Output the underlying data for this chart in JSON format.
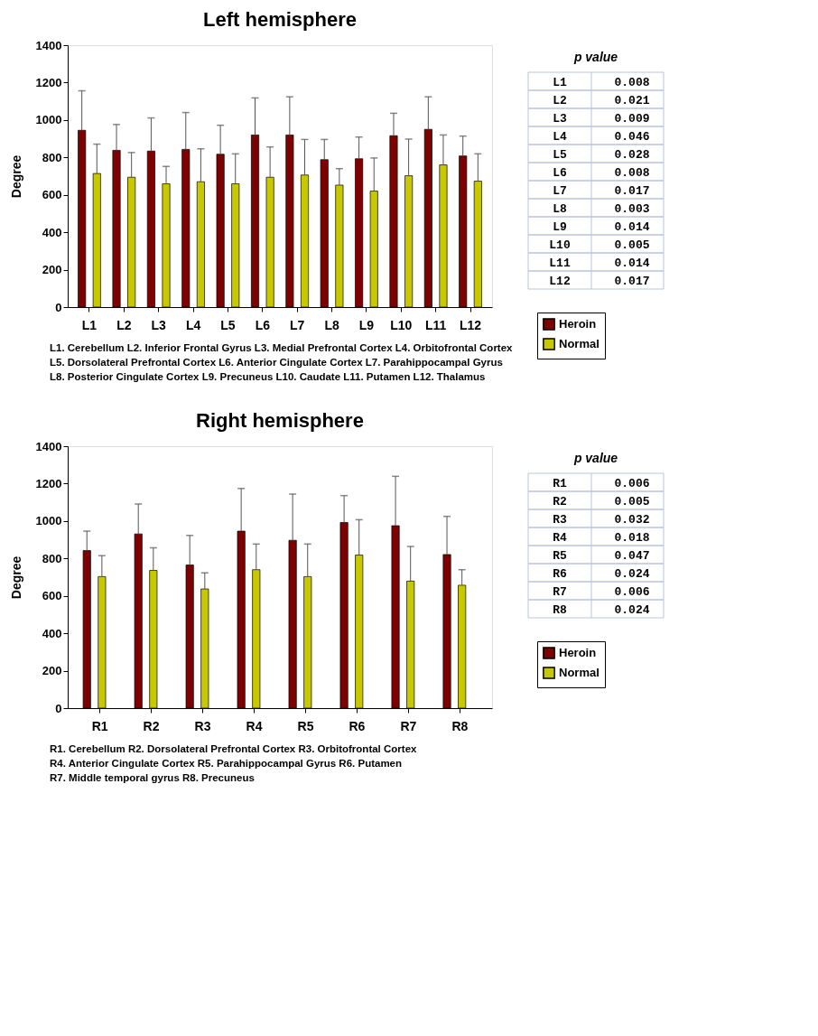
{
  "chart_data": [
    {
      "type": "bar",
      "title": "Left hemisphere",
      "ylabel": "Degree",
      "categories": [
        "L1",
        "L2",
        "L3",
        "L4",
        "L5",
        "L6",
        "L7",
        "L8",
        "L9",
        "L10",
        "L11",
        "L12"
      ],
      "ylim": [
        0,
        1400
      ],
      "yticks": [
        0,
        200,
        400,
        600,
        800,
        1000,
        1200,
        1400
      ],
      "legend": "right",
      "series": [
        {
          "name": "Heroin",
          "color": "#7f0000",
          "values": [
            945,
            838,
            834,
            843,
            817,
            920,
            920,
            788,
            793,
            916,
            950,
            808
          ],
          "errors": [
            [
              945,
              1156
            ],
            [
              838,
              976
            ],
            [
              834,
              1011
            ],
            [
              843,
              1040
            ],
            [
              817,
              972
            ],
            [
              920,
              1118
            ],
            [
              920,
              1124
            ],
            [
              788,
              896
            ],
            [
              793,
              909
            ],
            [
              916,
              1036
            ],
            [
              950,
              1124
            ],
            [
              808,
              914
            ]
          ]
        },
        {
          "name": "Normal",
          "color": "#c8c800",
          "values": [
            714,
            694,
            659,
            670,
            659,
            694,
            706,
            652,
            620,
            702,
            760,
            673
          ],
          "errors": [
            [
              714,
              871
            ],
            [
              694,
              826
            ],
            [
              659,
              752
            ],
            [
              670,
              846
            ],
            [
              659,
              819
            ],
            [
              694,
              856
            ],
            [
              706,
              896
            ],
            [
              652,
              740
            ],
            [
              620,
              797
            ],
            [
              702,
              898
            ],
            [
              760,
              920
            ],
            [
              673,
              819
            ]
          ]
        }
      ],
      "annotations": [
        "p value",
        "L1",
        "0.008",
        "L2",
        "0.021",
        "L3",
        "0.009",
        "L4",
        "0.046",
        "L5",
        "0.028",
        "L6",
        "0.008",
        "L7",
        "0.017",
        "L8",
        "0.003",
        "L9",
        "0.014",
        "L10",
        "0.005",
        "L11",
        "0.014",
        "L12",
        "0.017",
        "L1. Cerebellum L2. Inferior Frontal Gyrus  L3. Medial Prefrontal Cortex L4. Orbitofrontal Cortex",
        "L5. Dorsolateral Prefrontal Cortex L6. Anterior Cingulate Cortex  L7. Parahippocampal Gyrus",
        "L8. Posterior Cingulate Cortex  L9. Precuneus L10. Caudate L11. Putamen L12. Thalamus"
      ]
    },
    {
      "type": "bar",
      "title": "Right hemisphere",
      "ylabel": "Degree",
      "categories": [
        "R1",
        "R2",
        "R3",
        "R4",
        "R5",
        "R6",
        "R7",
        "R8"
      ],
      "ylim": [
        0,
        1400
      ],
      "yticks": [
        0,
        200,
        400,
        600,
        800,
        1000,
        1200,
        1400
      ],
      "legend": "right",
      "series": [
        {
          "name": "Heroin",
          "color": "#7f0000",
          "values": [
            842,
            931,
            765,
            946,
            897,
            992,
            975,
            821
          ],
          "errors": [
            [
              842,
              946
            ],
            [
              931,
              1091
            ],
            [
              765,
              923
            ],
            [
              946,
              1174
            ],
            [
              897,
              1144
            ],
            [
              992,
              1136
            ],
            [
              975,
              1239
            ],
            [
              821,
              1025
            ]
          ]
        },
        {
          "name": "Normal",
          "color": "#c8c800",
          "values": [
            703,
            736,
            637,
            740,
            703,
            818,
            679,
            657
          ],
          "errors": [
            [
              703,
              815
            ],
            [
              736,
              857
            ],
            [
              637,
              723
            ],
            [
              740,
              877
            ],
            [
              703,
              877
            ],
            [
              818,
              1007
            ],
            [
              679,
              864
            ],
            [
              657,
              740
            ]
          ]
        }
      ],
      "annotations": [
        "p value",
        "R1",
        "0.006",
        "R2",
        "0.005",
        "R3",
        "0.032",
        "R4",
        "0.018",
        "R5",
        "0.047",
        "R6",
        "0.024",
        "R7",
        "0.006",
        "R8",
        "0.024",
        "R1. Cerebellum R2. Dorsolateral Prefrontal Cortex  R3. Orbitofrontal Cortex",
        "R4. Anterior Cingulate Cortex  R5. Parahippocampal Gyrus R6.  Putamen",
        "R7. Middle temporal gyrus R8. Precuneus"
      ]
    }
  ]
}
